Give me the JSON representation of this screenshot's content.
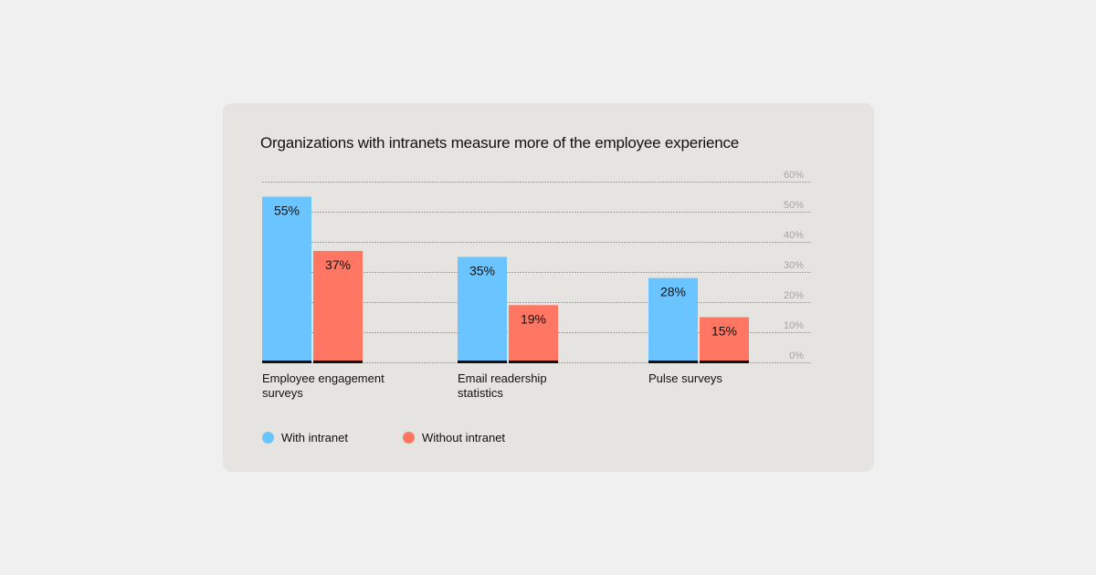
{
  "chart_data": {
    "type": "bar",
    "title": "Organizations with intranets measure more of the employee experience",
    "categories": [
      "Employee engagement surveys",
      "Email readership statistics",
      "Pulse surveys"
    ],
    "series": [
      {
        "name": "With intranet",
        "color": "#6ac4ff",
        "values": [
          55,
          35,
          28
        ],
        "labels": [
          "55%",
          "35%",
          "28%"
        ]
      },
      {
        "name": "Without intranet",
        "color": "#ff7763",
        "values": [
          37,
          19,
          15
        ],
        "labels": [
          "37%",
          "19%",
          "15%"
        ]
      }
    ],
    "ylim": [
      0,
      60
    ],
    "yticks": [
      0,
      10,
      20,
      30,
      40,
      50,
      60
    ],
    "ytick_labels": [
      "0%",
      "10%",
      "20%",
      "30%",
      "40%",
      "50%",
      "60%"
    ],
    "yaxis_position": "right",
    "grid": true,
    "legend": "bottom-left"
  }
}
